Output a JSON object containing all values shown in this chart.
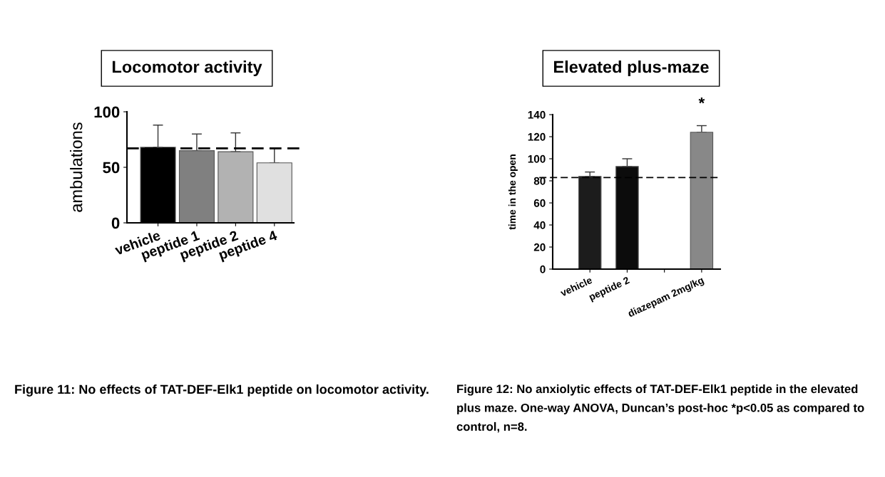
{
  "chart_data": [
    {
      "type": "bar",
      "title": "Locomotor activity",
      "ylabel": "ambulations",
      "categories": [
        "vehicle",
        "peptide 1",
        "peptide 2",
        "peptide 4"
      ],
      "values": [
        68,
        65,
        64,
        54
      ],
      "colors": [
        "#000000",
        "#808080",
        "#b2b2b2",
        "#e0e0e0"
      ],
      "errors": [
        [
          68,
          88
        ],
        [
          65,
          80
        ],
        [
          64,
          81
        ],
        [
          54,
          67
        ]
      ],
      "ylim": [
        0,
        100
      ],
      "yticks": [
        0,
        50,
        100
      ],
      "grid": false,
      "legend": false,
      "ref_lines": [
        {
          "axis": "y",
          "value": 67,
          "color": "#000000",
          "line_style": "dashed"
        }
      ],
      "annotations": [
        "Figure 11: No effects of TAT-DEF-Elk1 peptide on locomotor activity."
      ]
    },
    {
      "type": "bar",
      "title": "Elevated plus-maze",
      "ylabel": "time in the open",
      "categories": [
        "vehicle",
        "peptide 2",
        null,
        "diazepam 2mg/kg"
      ],
      "values": [
        84,
        93,
        null,
        124
      ],
      "colors": [
        "#1c1c1c",
        "#0c0c0c",
        "#888888",
        "#888888"
      ],
      "errors": [
        [
          84,
          88
        ],
        [
          93,
          100
        ],
        null,
        [
          124,
          130
        ]
      ],
      "ylim": [
        0,
        140
      ],
      "yticks": [
        0,
        20,
        40,
        60,
        80,
        100,
        120,
        140
      ],
      "grid": false,
      "legend": false,
      "ref_lines": [
        {
          "axis": "y",
          "value": 83,
          "color": "#000000",
          "line_style": "dashed"
        }
      ],
      "annotations": [
        "*",
        "Figure 12: No anxiolytic effects of TAT-DEF-Elk1 peptide in the elevated plus maze. One-way ANOVA, Duncan’s post-hoc *p<0.05 as compared to control, n=8."
      ]
    }
  ]
}
